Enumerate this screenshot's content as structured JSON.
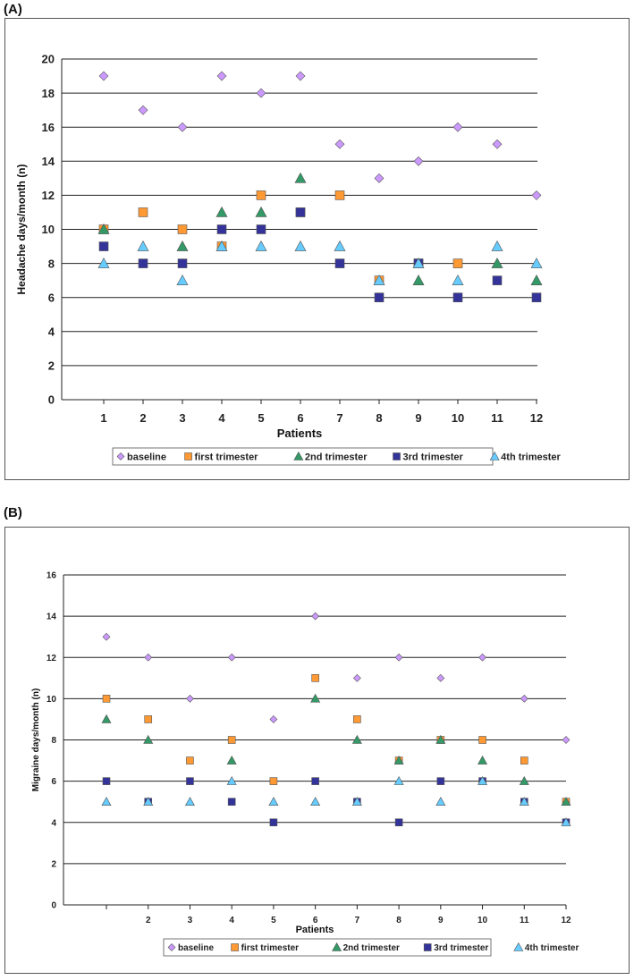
{
  "figure": {
    "panel_a_label": "(A)",
    "panel_b_label": "(B)"
  },
  "colors": {
    "baseline": "#CC99FF",
    "first trimester": "#FF9933",
    "2nd trimester": "#339966",
    "3rd trimester": "#333399",
    "4th trimester": "#66CCFF"
  },
  "chart_data": [
    {
      "type": "scatter",
      "title": "",
      "xlabel": "Patients",
      "ylabel": "Headache days/month (n)",
      "categories": [
        "1",
        "2",
        "3",
        "4",
        "5",
        "6",
        "7",
        "8",
        "9",
        "10",
        "11",
        "12"
      ],
      "x_tick_labels": [
        "1",
        "2",
        "3",
        "4",
        "5",
        "6",
        "7",
        "8",
        "9",
        "10",
        "11",
        "12"
      ],
      "ylim": [
        0,
        20
      ],
      "y_ticks": [
        0,
        2,
        4,
        6,
        8,
        10,
        12,
        14,
        16,
        18,
        20
      ],
      "legend_position": "bottom",
      "series": [
        {
          "name": "baseline",
          "marker": "diamond",
          "values": [
            19,
            17,
            16,
            19,
            18,
            19,
            15,
            13,
            14,
            16,
            15,
            12
          ]
        },
        {
          "name": "first trimester",
          "marker": "square",
          "values": [
            10,
            11,
            10,
            9,
            12,
            11,
            12,
            7,
            8,
            8,
            null,
            null
          ]
        },
        {
          "name": "2nd trimester",
          "marker": "triangle",
          "values": [
            10,
            null,
            9,
            11,
            11,
            13,
            null,
            null,
            7,
            null,
            8,
            7
          ]
        },
        {
          "name": "3rd trimester",
          "marker": "square",
          "values": [
            9,
            8,
            8,
            10,
            10,
            11,
            8,
            6,
            8,
            6,
            7,
            6
          ]
        },
        {
          "name": "4th trimester",
          "marker": "triangle",
          "values": [
            8,
            9,
            7,
            9,
            9,
            9,
            9,
            7,
            8,
            7,
            9,
            8
          ]
        }
      ]
    },
    {
      "type": "scatter",
      "title": "",
      "xlabel": "Patients",
      "ylabel": "Migraine days/month (n)",
      "categories": [
        "1",
        "2",
        "3",
        "4",
        "5",
        "6",
        "7",
        "8",
        "9",
        "10",
        "11",
        "12"
      ],
      "x_tick_labels": [
        "",
        "2",
        "3",
        "4",
        "5",
        "6",
        "7",
        "8",
        "9",
        "10",
        "11",
        "12"
      ],
      "ylim": [
        0,
        16
      ],
      "y_ticks": [
        0,
        2,
        4,
        6,
        8,
        10,
        12,
        14,
        16
      ],
      "legend_position": "bottom",
      "series": [
        {
          "name": "baseline",
          "marker": "diamond",
          "values": [
            13,
            12,
            10,
            12,
            9,
            14,
            11,
            12,
            11,
            12,
            10,
            8
          ]
        },
        {
          "name": "first trimester",
          "marker": "square",
          "values": [
            10,
            9,
            7,
            8,
            6,
            11,
            9,
            7,
            8,
            8,
            7,
            5
          ]
        },
        {
          "name": "2nd trimester",
          "marker": "triangle",
          "values": [
            9,
            8,
            null,
            7,
            null,
            10,
            8,
            7,
            8,
            7,
            6,
            5
          ]
        },
        {
          "name": "3rd trimester",
          "marker": "square",
          "values": [
            6,
            5,
            6,
            5,
            4,
            6,
            5,
            4,
            6,
            6,
            5,
            4
          ]
        },
        {
          "name": "4th trimester",
          "marker": "triangle",
          "values": [
            5,
            5,
            5,
            6,
            5,
            5,
            5,
            6,
            5,
            6,
            5,
            4
          ]
        }
      ]
    }
  ]
}
